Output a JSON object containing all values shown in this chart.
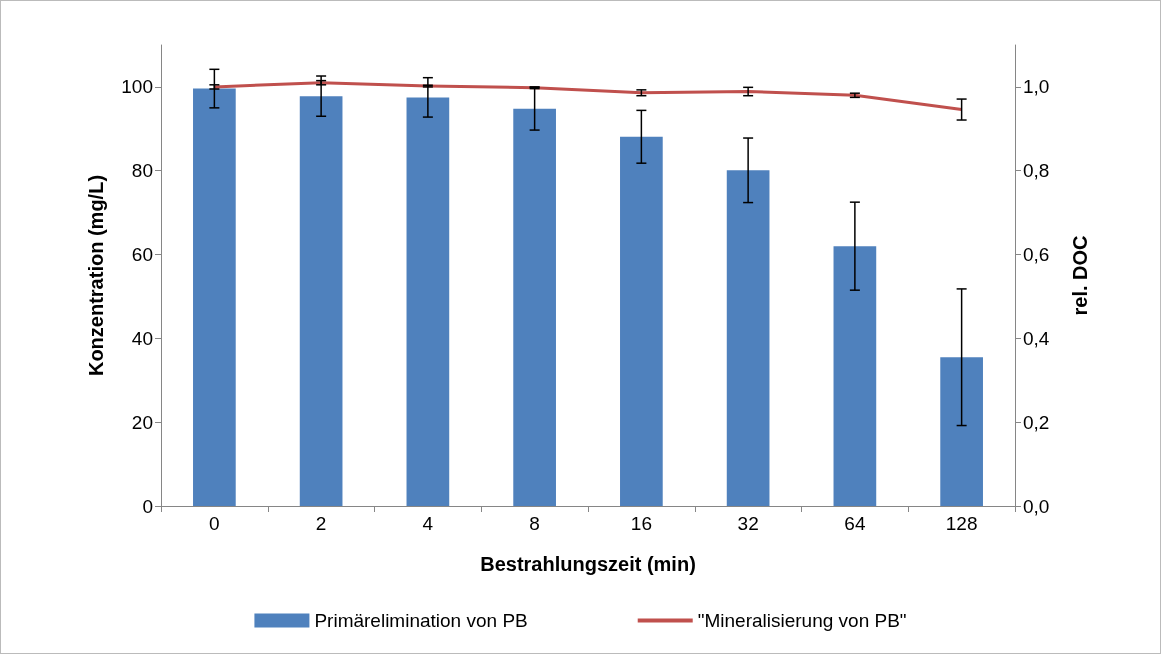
{
  "chart_data": {
    "type": "bar",
    "xlabel": "Bestrahlungszeit (min)",
    "ylabel": "Konzentration (mg/L)",
    "y2label": "rel. DOC",
    "categories": [
      "0",
      "2",
      "4",
      "8",
      "16",
      "32",
      "64",
      "128"
    ],
    "series": [
      {
        "name": "Primärelimination von PB",
        "color": "#4f81bd",
        "values": [
          99.6,
          97.8,
          97.5,
          94.8,
          88.1,
          80.1,
          62.0,
          35.5
        ],
        "errors": [
          4.6,
          4.8,
          4.7,
          5.1,
          6.3,
          7.7,
          10.5,
          16.3
        ]
      },
      {
        "name": "\"Mineralisierung von PB\"",
        "type": "line",
        "axis": "y2",
        "color": "#c0504d",
        "values": [
          1.0,
          1.01,
          1.002,
          0.998,
          0.986,
          0.989,
          0.98,
          0.946
        ],
        "errors": [
          0.005,
          0.005,
          0.002,
          0.002,
          0.007,
          0.01,
          0.005,
          0.025
        ]
      }
    ],
    "ylim": [
      0,
      110
    ],
    "yticks": [
      0,
      20,
      40,
      60,
      80,
      100
    ],
    "y2lim": [
      0,
      1.1
    ],
    "y2ticks": [
      {
        "value": 0,
        "label": "0,0"
      },
      {
        "value": 0.2,
        "label": "0,2"
      },
      {
        "value": 0.4,
        "label": "0,4"
      },
      {
        "value": 0.6,
        "label": "0,6"
      },
      {
        "value": 0.8,
        "label": "0,8"
      },
      {
        "value": 1.0,
        "label": "1,0"
      }
    ],
    "grid": false,
    "legend": "bottom"
  }
}
